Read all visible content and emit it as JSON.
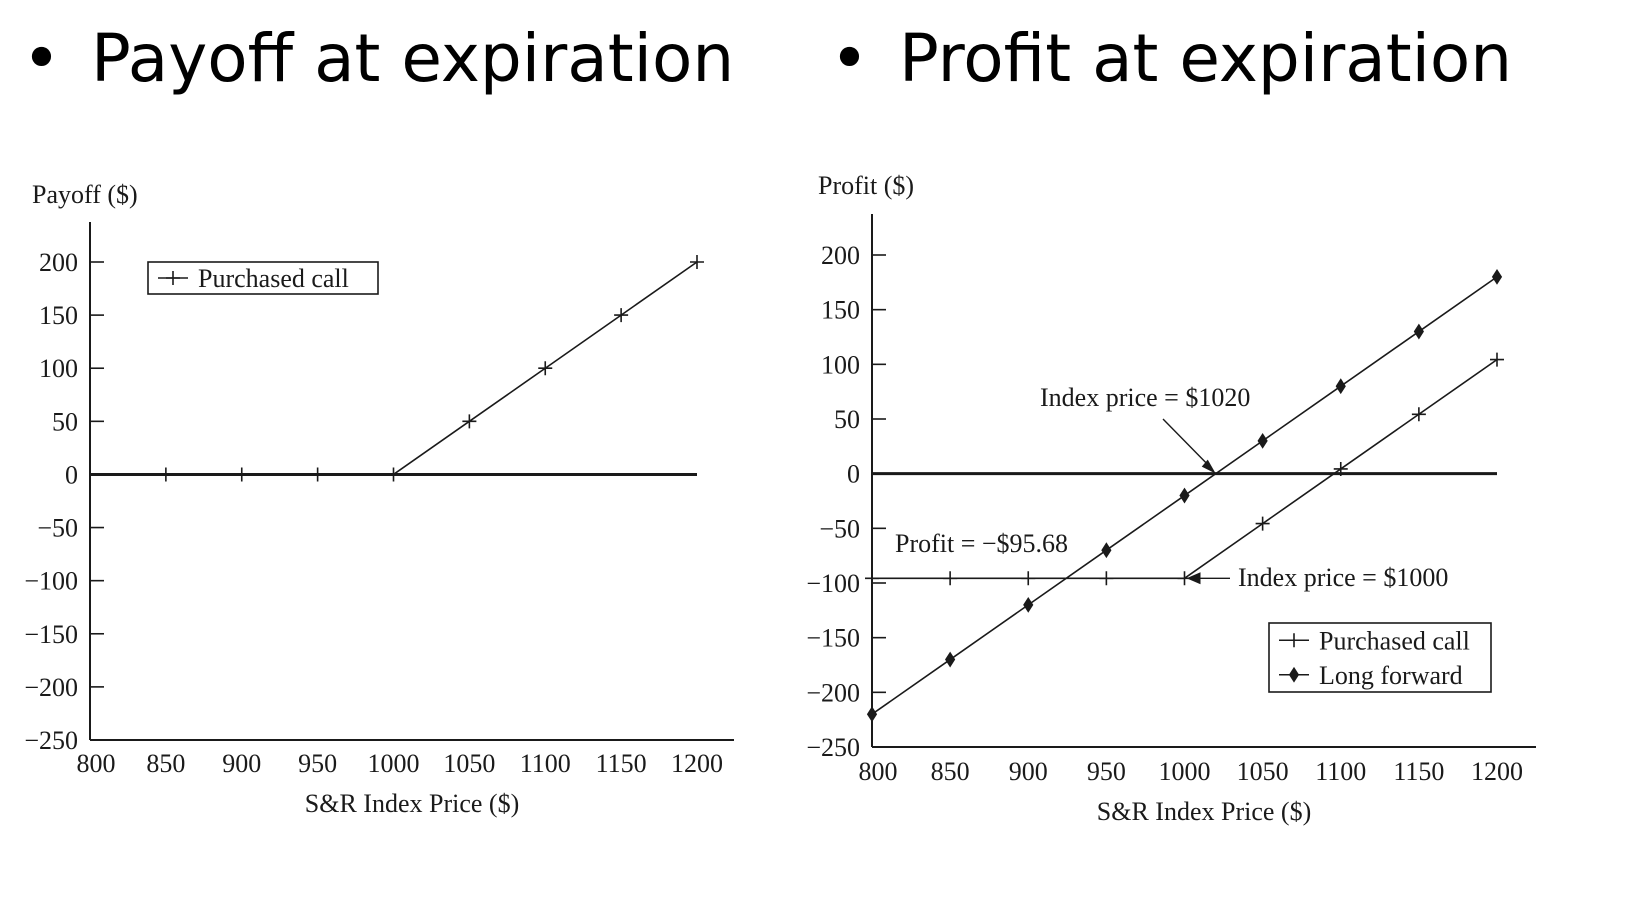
{
  "headings": {
    "bullet": "•",
    "left": "Payoff at expiration",
    "right": "Profit at expiration"
  },
  "chart_data": [
    {
      "type": "line",
      "title": "",
      "xlabel": "S&R Index Price ($)",
      "ylabel": "Payoff ($)",
      "xlim": [
        800,
        1200
      ],
      "ylim": [
        -250,
        200
      ],
      "xticks": [
        "800",
        "850",
        "900",
        "950",
        "1000",
        "1050",
        "1100",
        "1150",
        "1200"
      ],
      "yticks": [
        "200",
        "150",
        "100",
        "50",
        "0",
        "−50",
        "−100",
        "−150",
        "−200",
        "−250"
      ],
      "legend_position": "top-left",
      "series": [
        {
          "name": "Purchased call",
          "marker": "plus",
          "color": "#1a1a1a",
          "x": [
            850,
            900,
            950,
            1000,
            1050,
            1100,
            1150,
            1200
          ],
          "y": [
            0,
            0,
            0,
            0,
            50,
            100,
            150,
            200
          ]
        }
      ],
      "zero_line": {
        "y": 0
      }
    },
    {
      "type": "line",
      "title": "",
      "xlabel": "S&R Index Price ($)",
      "ylabel": "Profit ($)",
      "xlim": [
        800,
        1200
      ],
      "ylim": [
        -250,
        200
      ],
      "xticks": [
        "800",
        "850",
        "900",
        "950",
        "1000",
        "1050",
        "1100",
        "1150",
        "1200"
      ],
      "yticks": [
        "200",
        "150",
        "100",
        "50",
        "0",
        "−50",
        "−100",
        "−150",
        "−200",
        "−250"
      ],
      "legend_position": "bottom-right",
      "series": [
        {
          "name": "Purchased call",
          "marker": "plus",
          "color": "#1a1a1a",
          "x": [
            800,
            850,
            900,
            950,
            1000,
            1050,
            1100,
            1150,
            1200
          ],
          "y": [
            -95.68,
            -95.68,
            -95.68,
            -95.68,
            -95.68,
            -45.68,
            4.32,
            54.32,
            104.32
          ]
        },
        {
          "name": "Long forward",
          "marker": "diamond",
          "color": "#1a1a1a",
          "x": [
            800,
            850,
            900,
            950,
            1000,
            1050,
            1100,
            1150,
            1200
          ],
          "y": [
            -220,
            -170,
            -120,
            -70,
            -20,
            30,
            80,
            130,
            180
          ]
        }
      ],
      "zero_line": {
        "y": 0
      },
      "annotations": [
        {
          "text": "Index price = $1020",
          "x": 1020,
          "y": 0,
          "arrow": true
        },
        {
          "text": "Profit = −$95.68",
          "x": 800,
          "y": -95.68,
          "arrow": false
        },
        {
          "text": "Index price = $1000",
          "x": 1000,
          "y": -95.68,
          "arrow": true
        }
      ]
    }
  ]
}
